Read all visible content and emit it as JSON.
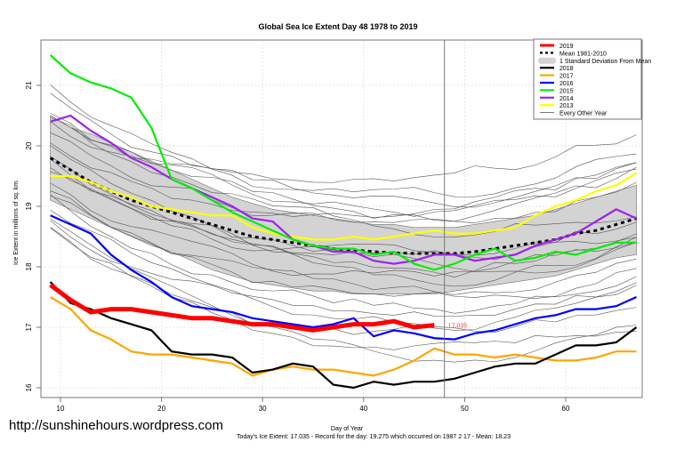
{
  "chart_data": {
    "type": "line",
    "title": "Global Sea Ice Extent Day 48 1978 to 2019",
    "xlabel": "Day of Year",
    "ylabel": "Ice Extent in millions of sq. km.",
    "subtitle": "Today's Ice Extent: 17.035  - Record for the day: 19.275 which occurred on 1987 2 17  - Mean: 18.23",
    "xlim": [
      6,
      68
    ],
    "ylim": [
      15.85,
      21.7
    ],
    "x_ticks": [
      10,
      20,
      30,
      40,
      50,
      60
    ],
    "y_ticks": [
      16,
      17,
      18,
      19,
      20,
      21
    ],
    "grid": true,
    "current_day": 48,
    "current_value_label": "17.035",
    "legend_position": "top-right",
    "legend": [
      {
        "label": "2019",
        "color": "#ff0000",
        "style": "thick"
      },
      {
        "label": "Mean 1981-2010",
        "color": "#000000",
        "style": "dashed"
      },
      {
        "label": "1 Standard Deviation From Mean",
        "color": "#d3d3d3",
        "style": "band"
      },
      {
        "label": "2018",
        "color": "#000000",
        "style": "solid"
      },
      {
        "label": "2017",
        "color": "#ffa500",
        "style": "solid"
      },
      {
        "label": "2016",
        "color": "#0000ff",
        "style": "solid"
      },
      {
        "label": "2015",
        "color": "#00ee00",
        "style": "solid"
      },
      {
        "label": "2014",
        "color": "#a020f0",
        "style": "solid"
      },
      {
        "label": "2013",
        "color": "#ffff00",
        "style": "solid"
      },
      {
        "label": "Every Other Year",
        "color": "#555555",
        "style": "thin"
      }
    ],
    "x": [
      9,
      11,
      13,
      15,
      17,
      19,
      21,
      23,
      25,
      27,
      29,
      31,
      33,
      35,
      37,
      39,
      41,
      43,
      45,
      47,
      49,
      51,
      53,
      55,
      57,
      59,
      61,
      63,
      65,
      67
    ],
    "std_band": {
      "upper": [
        20.5,
        20.3,
        20.2,
        20.05,
        19.9,
        19.75,
        19.6,
        19.45,
        19.3,
        19.15,
        19.05,
        18.95,
        18.9,
        18.85,
        18.8,
        18.75,
        18.7,
        18.7,
        18.65,
        18.65,
        18.65,
        18.7,
        18.75,
        18.8,
        18.85,
        18.95,
        19.05,
        19.15,
        19.25,
        19.35
      ],
      "lower": [
        19.1,
        18.95,
        18.8,
        18.65,
        18.5,
        18.35,
        18.25,
        18.1,
        17.95,
        17.85,
        17.75,
        17.7,
        17.65,
        17.6,
        17.6,
        17.55,
        17.55,
        17.55,
        17.55,
        17.55,
        17.6,
        17.65,
        17.7,
        17.75,
        17.8,
        17.85,
        17.95,
        18.05,
        18.15,
        18.2
      ]
    },
    "series": [
      {
        "name": "Mean 1981-2010",
        "color": "#000000",
        "dashed": true,
        "values": [
          19.8,
          19.6,
          19.4,
          19.25,
          19.1,
          19.0,
          18.9,
          18.8,
          18.7,
          18.6,
          18.5,
          18.45,
          18.4,
          18.35,
          18.3,
          18.28,
          18.25,
          18.23,
          18.22,
          18.22,
          18.22,
          18.25,
          18.3,
          18.35,
          18.4,
          18.45,
          18.55,
          18.6,
          18.7,
          18.8
        ]
      },
      {
        "name": "2013",
        "color": "#ffff00",
        "values": [
          19.5,
          19.5,
          19.4,
          19.25,
          19.15,
          19.0,
          18.95,
          18.9,
          18.85,
          18.85,
          18.65,
          18.55,
          18.5,
          18.45,
          18.45,
          18.5,
          18.45,
          18.5,
          18.55,
          18.6,
          18.55,
          18.55,
          18.6,
          18.65,
          18.85,
          19.0,
          19.1,
          19.25,
          19.35,
          19.55
        ]
      },
      {
        "name": "2014",
        "color": "#a020f0",
        "values": [
          20.4,
          20.5,
          20.25,
          20.05,
          19.8,
          19.65,
          19.45,
          19.3,
          19.15,
          19.0,
          18.8,
          18.75,
          18.45,
          18.35,
          18.25,
          18.25,
          18.1,
          18.05,
          18.1,
          18.2,
          18.2,
          18.1,
          18.15,
          18.2,
          18.35,
          18.45,
          18.55,
          18.75,
          18.95,
          18.8
        ]
      },
      {
        "name": "2015",
        "color": "#00ee00",
        "values": [
          21.5,
          21.2,
          21.05,
          20.95,
          20.8,
          20.3,
          19.45,
          19.3,
          19.1,
          18.9,
          18.75,
          18.6,
          18.45,
          18.35,
          18.3,
          18.3,
          18.2,
          18.25,
          18.05,
          17.95,
          18.05,
          18.2,
          18.3,
          18.1,
          18.15,
          18.25,
          18.2,
          18.3,
          18.4,
          18.4
        ]
      },
      {
        "name": "2016",
        "color": "#0000ff",
        "values": [
          18.85,
          18.7,
          18.55,
          18.2,
          17.95,
          17.75,
          17.5,
          17.35,
          17.3,
          17.25,
          17.15,
          17.1,
          17.05,
          17.0,
          17.05,
          17.15,
          16.85,
          16.95,
          16.9,
          16.82,
          16.8,
          16.9,
          16.95,
          17.05,
          17.15,
          17.2,
          17.3,
          17.3,
          17.35,
          17.5
        ]
      },
      {
        "name": "2017",
        "color": "#ffa500",
        "values": [
          17.5,
          17.3,
          16.95,
          16.8,
          16.6,
          16.55,
          16.55,
          16.5,
          16.45,
          16.4,
          16.2,
          16.3,
          16.35,
          16.3,
          16.3,
          16.25,
          16.2,
          16.3,
          16.45,
          16.65,
          16.55,
          16.55,
          16.5,
          16.55,
          16.5,
          16.45,
          16.45,
          16.5,
          16.6,
          16.6
        ]
      },
      {
        "name": "2018",
        "color": "#000000",
        "values": [
          17.75,
          17.4,
          17.3,
          17.15,
          17.05,
          16.95,
          16.6,
          16.55,
          16.55,
          16.5,
          16.25,
          16.3,
          16.4,
          16.35,
          16.05,
          16.0,
          16.1,
          16.05,
          16.1,
          16.1,
          16.15,
          16.25,
          16.35,
          16.4,
          16.4,
          16.55,
          16.7,
          16.7,
          16.75,
          17.0
        ]
      },
      {
        "name": "2019",
        "color": "#ff0000",
        "thick": true,
        "values": [
          17.7,
          17.45,
          17.25,
          17.3,
          17.3,
          17.25,
          17.2,
          17.15,
          17.15,
          17.1,
          17.05,
          17.05,
          17.0,
          16.95,
          17.0,
          17.05,
          17.05,
          17.1,
          17.0,
          17.035
        ]
      }
    ]
  },
  "footer": {
    "website": "http://sunshinehours.wordpress.com"
  }
}
